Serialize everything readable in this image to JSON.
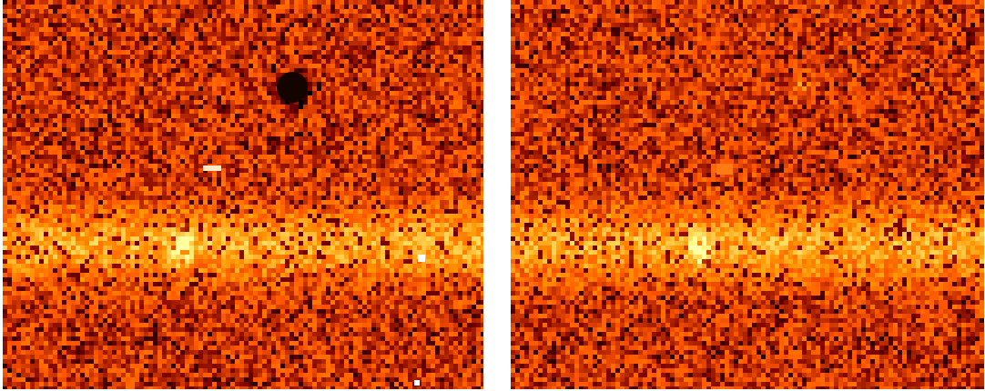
{
  "figure": {
    "panels": [
      {
        "id": "left",
        "description_colormap": "heat",
        "features": [
          "diffuse-horizontal-band",
          "bright-knot",
          "dark-spot",
          "hot-pixels"
        ]
      },
      {
        "id": "right",
        "description_colormap": "heat",
        "features": [
          "diffuse-horizontal-band",
          "bright-knot",
          "faint-source"
        ]
      }
    ],
    "colors": {
      "background": "#ffffff",
      "dark": "#1a0600",
      "mid": "#b83c00",
      "bright": "#ff6a00",
      "highlight": "#ffe0b0"
    }
  }
}
